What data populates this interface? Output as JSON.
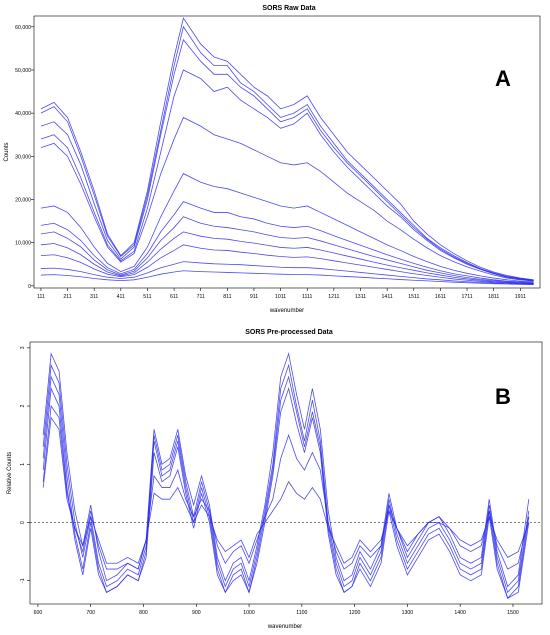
{
  "chart_data": [
    {
      "type": "line",
      "title": "SORS Raw Data",
      "panel_label": "A",
      "xlabel": "wavenumber",
      "ylabel": "Counts",
      "xlim": [
        85,
        1985
      ],
      "ylim": [
        -500,
        62500
      ],
      "x_ticks": [
        111,
        211,
        311,
        411,
        511,
        611,
        711,
        811,
        911,
        1011,
        1111,
        1211,
        1311,
        1411,
        1511,
        1611,
        1711,
        1811,
        1911
      ],
      "x_tick_labels": [
        "111",
        "211",
        "311",
        "411",
        "511",
        "611",
        "711",
        "811",
        "911",
        "1011",
        "1111",
        "1211",
        "1311",
        "1411",
        "1511",
        "1611",
        "1711",
        "1811",
        "1911"
      ],
      "y_ticks": [
        0,
        10000,
        20000,
        30000,
        40000,
        50000,
        60000
      ],
      "y_tick_labels": [
        "0",
        "10,000",
        "20,000",
        "30,000",
        "40,000",
        "50,000",
        "60,000"
      ],
      "grid": false,
      "line_color": "#2b2bea",
      "x": [
        111,
        160,
        211,
        261,
        311,
        361,
        411,
        461,
        511,
        561,
        611,
        646,
        711,
        761,
        811,
        861,
        911,
        961,
        1011,
        1061,
        1111,
        1161,
        1211,
        1261,
        1311,
        1361,
        1411,
        1461,
        1511,
        1561,
        1611,
        1661,
        1711,
        1761,
        1811,
        1861,
        1911,
        1961
      ],
      "series": [
        {
          "values": [
            41000,
            42500,
            39000,
            31000,
            22000,
            12000,
            7000,
            10000,
            22000,
            38000,
            53000,
            62000,
            56000,
            53000,
            52000,
            49000,
            46000,
            44000,
            41000,
            42000,
            44000,
            39000,
            35000,
            31000,
            28000,
            25000,
            22000,
            19000,
            15000,
            12000,
            9500,
            7500,
            5800,
            4300,
            3200,
            2400,
            1800,
            1400
          ]
        },
        {
          "values": [
            40000,
            41500,
            38000,
            30000,
            21000,
            11500,
            6800,
            9500,
            21000,
            36000,
            51000,
            60000,
            54000,
            51000,
            51000,
            47000,
            45000,
            42000,
            39000,
            40000,
            42000,
            37000,
            33000,
            29000,
            26000,
            23000,
            20000,
            17000,
            14000,
            11000,
            8800,
            7000,
            5400,
            4000,
            3000,
            2200,
            1700,
            1300
          ]
        },
        {
          "values": [
            37000,
            38000,
            35000,
            28000,
            19000,
            10500,
            6200,
            9000,
            20000,
            35000,
            49000,
            57000,
            52000,
            49000,
            49000,
            46000,
            44000,
            41000,
            38000,
            39000,
            41000,
            36000,
            32000,
            28500,
            25500,
            22500,
            19500,
            16500,
            13500,
            10800,
            8500,
            6700,
            5200,
            3900,
            2900,
            2100,
            1600,
            1200
          ]
        },
        {
          "values": [
            34000,
            35000,
            32000,
            25000,
            17000,
            9500,
            5800,
            8000,
            18000,
            31000,
            44000,
            50000,
            48000,
            45000,
            46000,
            43000,
            41000,
            39000,
            36500,
            37500,
            40000,
            35000,
            31000,
            27500,
            24500,
            21500,
            18500,
            16000,
            13000,
            10500,
            8200,
            6500,
            5000,
            3800,
            2800,
            2000,
            1500,
            1200
          ]
        },
        {
          "values": [
            32000,
            33000,
            30000,
            23500,
            16000,
            9000,
            5500,
            7500,
            16000,
            26000,
            34000,
            39000,
            37000,
            35000,
            34000,
            33000,
            31500,
            30000,
            28500,
            28000,
            28500,
            26500,
            24000,
            21500,
            19500,
            17500,
            15000,
            13000,
            10800,
            8800,
            7000,
            5600,
            4400,
            3400,
            2500,
            1800,
            1400,
            1100
          ]
        },
        {
          "values": [
            18000,
            18500,
            17000,
            13500,
            9000,
            5200,
            3300,
            4500,
            9000,
            16000,
            22000,
            26000,
            24000,
            23000,
            22500,
            21500,
            20500,
            19500,
            18500,
            18000,
            18500,
            17000,
            15500,
            14000,
            12500,
            11000,
            9500,
            8200,
            6800,
            5600,
            4500,
            3600,
            2900,
            2300,
            1800,
            1400,
            1100,
            900
          ]
        },
        {
          "values": [
            14000,
            14500,
            13000,
            10500,
            7000,
            4200,
            2800,
            3800,
            7500,
            12500,
            16500,
            19500,
            18000,
            17000,
            17000,
            16000,
            15500,
            14500,
            13800,
            13500,
            13800,
            12800,
            11600,
            10500,
            9400,
            8300,
            7200,
            6200,
            5200,
            4300,
            3500,
            2800,
            2300,
            1800,
            1400,
            1100,
            900,
            700
          ]
        },
        {
          "values": [
            12000,
            12500,
            11000,
            9000,
            6000,
            3700,
            2500,
            3400,
            6500,
            10500,
            13500,
            16000,
            14500,
            13800,
            13500,
            13000,
            12500,
            11800,
            11200,
            11000,
            11200,
            10400,
            9500,
            8600,
            7700,
            6800,
            6000,
            5200,
            4400,
            3600,
            3000,
            2400,
            1900,
            1500,
            1200,
            950,
            750,
            600
          ]
        },
        {
          "values": [
            9500,
            9800,
            8800,
            7200,
            5000,
            3200,
            2300,
            3000,
            5500,
            8500,
            11000,
            12500,
            11500,
            11000,
            10800,
            10300,
            9900,
            9400,
            8900,
            8700,
            8900,
            8300,
            7600,
            6900,
            6200,
            5500,
            4800,
            4200,
            3600,
            3000,
            2500,
            2000,
            1600,
            1300,
            1000,
            800,
            650,
            500
          ]
        },
        {
          "values": [
            7000,
            7200,
            6500,
            5400,
            3900,
            2700,
            2100,
            2600,
            4300,
            6500,
            8200,
            9500,
            8700,
            8300,
            8200,
            7800,
            7500,
            7100,
            6800,
            6600,
            6700,
            6300,
            5800,
            5300,
            4800,
            4300,
            3800,
            3300,
            2800,
            2400,
            2000,
            1600,
            1300,
            1050,
            850,
            680,
            550,
            450
          ]
        },
        {
          "values": [
            4000,
            4100,
            3800,
            3300,
            2600,
            2000,
            1700,
            2000,
            3000,
            4200,
            5000,
            5600,
            5300,
            5100,
            5000,
            4900,
            4700,
            4500,
            4300,
            4200,
            4200,
            4000,
            3700,
            3400,
            3100,
            2800,
            2500,
            2200,
            1900,
            1600,
            1400,
            1150,
            950,
            800,
            650,
            520,
            430,
            350
          ]
        },
        {
          "values": [
            2500,
            2600,
            2400,
            2100,
            1700,
            1400,
            1200,
            1400,
            2000,
            2700,
            3200,
            3500,
            3300,
            3200,
            3100,
            3000,
            2900,
            2800,
            2700,
            2600,
            2600,
            2500,
            2300,
            2150,
            2000,
            1800,
            1650,
            1450,
            1300,
            1150,
            1000,
            850,
            720,
            600,
            500,
            420,
            350,
            300
          ]
        }
      ]
    },
    {
      "type": "line",
      "title": "SORS Pre-processed Data",
      "panel_label": "B",
      "xlabel": "wavenumber",
      "ylabel": "Relative Counts",
      "xlim": [
        585,
        1555
      ],
      "ylim": [
        -1.4,
        3.1
      ],
      "x_ticks": [
        600,
        700,
        800,
        900,
        1000,
        1100,
        1200,
        1300,
        1400,
        1500
      ],
      "x_tick_labels": [
        "600",
        "700",
        "800",
        "900",
        "1000",
        "1100",
        "1200",
        "1300",
        "1400",
        "1500"
      ],
      "y_ticks": [
        -1,
        0,
        1,
        2,
        3
      ],
      "y_tick_labels": [
        "-1",
        "0",
        "1",
        "2",
        "3"
      ],
      "reference_line": 0,
      "grid": false,
      "line_color": "#2b2bea",
      "x": [
        610,
        625,
        640,
        655,
        670,
        685,
        700,
        715,
        730,
        750,
        770,
        790,
        805,
        820,
        835,
        850,
        865,
        880,
        895,
        910,
        925,
        940,
        955,
        970,
        985,
        1000,
        1015,
        1030,
        1045,
        1060,
        1075,
        1090,
        1105,
        1120,
        1135,
        1150,
        1165,
        1180,
        1195,
        1210,
        1230,
        1250,
        1265,
        1280,
        1300,
        1320,
        1340,
        1360,
        1380,
        1400,
        1420,
        1440,
        1455,
        1470,
        1490,
        1510,
        1530
      ],
      "series": [
        {
          "values": [
            1.5,
            2.9,
            2.6,
            1.2,
            0.2,
            -0.4,
            0.3,
            -0.5,
            -1.0,
            -0.9,
            -0.7,
            -0.8,
            -0.3,
            1.6,
            1.0,
            1.1,
            1.6,
            0.8,
            0.3,
            0.8,
            0.3,
            -0.6,
            -1.0,
            -0.7,
            -0.6,
            -1.0,
            -0.4,
            0.3,
            1.2,
            2.5,
            2.9,
            2.2,
            1.6,
            2.3,
            1.6,
            0.2,
            -0.6,
            -1.0,
            -0.9,
            -0.5,
            -0.8,
            -0.4,
            0.5,
            -0.1,
            -0.6,
            -0.3,
            0.0,
            0.1,
            -0.2,
            -0.6,
            -0.7,
            -0.6,
            0.4,
            -0.5,
            -1.1,
            -0.9,
            0.4
          ]
        },
        {
          "values": [
            1.3,
            2.7,
            2.4,
            1.0,
            0.0,
            -0.6,
            0.1,
            -0.7,
            -1.1,
            -1.0,
            -0.8,
            -0.9,
            -0.4,
            1.5,
            0.9,
            1.0,
            1.5,
            0.7,
            0.1,
            0.7,
            0.2,
            -0.7,
            -1.1,
            -0.8,
            -0.7,
            -1.1,
            -0.5,
            0.2,
            1.0,
            2.3,
            2.7,
            2.0,
            1.4,
            2.1,
            1.4,
            0.0,
            -0.7,
            -1.1,
            -1.0,
            -0.6,
            -0.9,
            -0.5,
            0.4,
            -0.2,
            -0.7,
            -0.4,
            -0.1,
            0.0,
            -0.3,
            -0.7,
            -0.8,
            -0.7,
            0.3,
            -0.6,
            -1.2,
            -1.0,
            0.2
          ]
        },
        {
          "values": [
            1.1,
            2.5,
            2.2,
            0.8,
            -0.2,
            -0.8,
            0.0,
            -0.8,
            -1.2,
            -1.1,
            -0.9,
            -1.0,
            -0.5,
            1.4,
            0.8,
            0.9,
            1.4,
            0.6,
            0.0,
            0.6,
            0.1,
            -0.8,
            -1.2,
            -0.9,
            -0.8,
            -1.2,
            -0.6,
            0.1,
            0.9,
            2.1,
            2.5,
            1.9,
            1.3,
            1.9,
            1.3,
            -0.1,
            -0.8,
            -1.2,
            -1.1,
            -0.7,
            -1.0,
            -0.6,
            0.3,
            -0.3,
            -0.8,
            -0.5,
            -0.2,
            -0.1,
            -0.4,
            -0.8,
            -0.9,
            -0.8,
            0.2,
            -0.7,
            -1.3,
            -1.1,
            0.1
          ]
        },
        {
          "values": [
            0.9,
            2.3,
            2.0,
            0.6,
            -0.3,
            -0.9,
            -0.1,
            -0.9,
            -1.2,
            -1.1,
            -0.9,
            -1.0,
            -0.6,
            1.2,
            0.7,
            0.8,
            1.3,
            0.5,
            -0.1,
            0.5,
            0.0,
            -0.9,
            -1.2,
            -1.0,
            -0.9,
            -1.2,
            -0.7,
            0.0,
            0.8,
            1.9,
            2.3,
            1.7,
            1.2,
            1.8,
            1.2,
            -0.2,
            -0.9,
            -1.2,
            -1.1,
            -0.8,
            -1.1,
            -0.7,
            0.2,
            -0.4,
            -0.9,
            -0.6,
            -0.3,
            -0.2,
            -0.5,
            -0.9,
            -1.0,
            -0.9,
            0.1,
            -0.8,
            -1.3,
            -1.2,
            0.0
          ]
        },
        {
          "values": [
            0.7,
            2.0,
            1.8,
            0.5,
            -0.1,
            -0.5,
            0.2,
            -0.4,
            -0.8,
            -0.8,
            -0.7,
            -0.8,
            -0.3,
            0.8,
            0.6,
            0.6,
            0.9,
            0.4,
            0.1,
            0.4,
            0.2,
            -0.4,
            -0.7,
            -0.5,
            -0.4,
            -0.7,
            -0.3,
            0.1,
            0.4,
            1.1,
            1.5,
            1.1,
            0.9,
            1.2,
            0.9,
            0.0,
            -0.5,
            -0.8,
            -0.7,
            -0.4,
            -0.6,
            -0.4,
            0.3,
            -0.1,
            -0.5,
            -0.2,
            0.0,
            0.1,
            -0.1,
            -0.4,
            -0.5,
            -0.4,
            0.2,
            -0.4,
            -0.8,
            -0.7,
            0.1
          ]
        },
        {
          "values": [
            0.6,
            1.8,
            1.6,
            0.4,
            -0.1,
            -0.4,
            0.1,
            -0.3,
            -0.7,
            -0.7,
            -0.6,
            -0.7,
            -0.3,
            0.5,
            0.4,
            0.4,
            0.6,
            0.3,
            0.0,
            0.3,
            0.1,
            -0.3,
            -0.5,
            -0.4,
            -0.3,
            -0.6,
            -0.2,
            0.0,
            0.2,
            0.4,
            0.7,
            0.5,
            0.4,
            0.6,
            0.4,
            -0.1,
            -0.4,
            -0.7,
            -0.6,
            -0.3,
            -0.5,
            -0.3,
            0.2,
            -0.1,
            -0.4,
            -0.2,
            0.0,
            0.0,
            -0.1,
            -0.3,
            -0.4,
            -0.3,
            0.1,
            -0.3,
            -0.6,
            -0.5,
            0.0
          ]
        }
      ]
    }
  ]
}
